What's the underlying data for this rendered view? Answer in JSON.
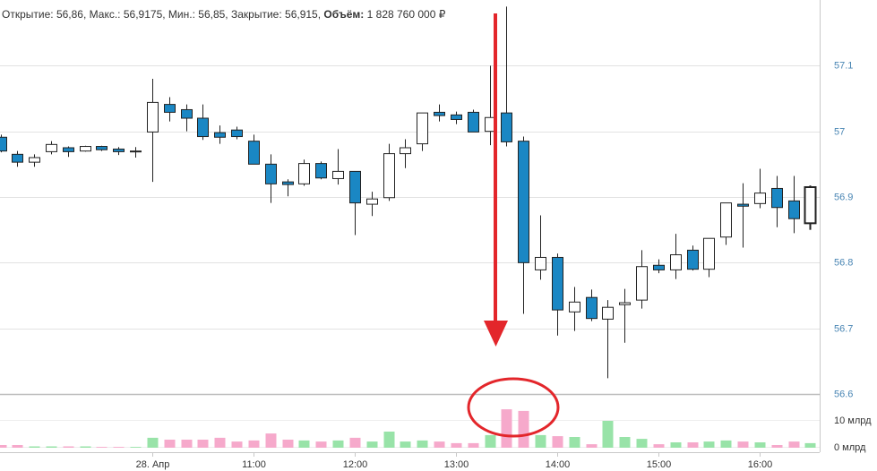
{
  "header": {
    "open_label": "Открытие:",
    "open": "56,86,",
    "high_label": "Макс.:",
    "high": "56,9175,",
    "low_label": "Мин.:",
    "low": "56,85,",
    "close_label": "Закрытие:",
    "close": "56,915,",
    "volume_label": "Объём:",
    "volume": "1 828 760 000 ₽"
  },
  "chart_data": {
    "type": "candlestick",
    "categories": [
      null,
      null,
      null,
      null,
      null,
      null,
      null,
      null,
      null,
      "28. Апр",
      null,
      null,
      null,
      null,
      null,
      "11:00",
      null,
      null,
      null,
      null,
      null,
      "12:00",
      null,
      null,
      null,
      null,
      null,
      "13:00",
      null,
      null,
      null,
      null,
      null,
      "14:00",
      null,
      null,
      null,
      null,
      null,
      "15:00",
      null,
      null,
      null,
      null,
      null,
      "16:00",
      null,
      null,
      null
    ],
    "open": [
      56.991,
      56.965,
      56.953,
      56.969,
      56.975,
      56.97,
      56.977,
      56.973,
      56.97,
      56.999,
      57.041,
      57.033,
      57.02,
      56.998,
      57.002,
      56.985,
      56.95,
      56.923,
      56.92,
      56.951,
      56.928,
      56.939,
      56.889,
      56.899,
      56.966,
      56.981,
      57.029,
      57.025,
      57.029,
      57.0,
      57.028,
      56.985,
      56.789,
      56.808,
      56.725,
      56.747,
      56.714,
      56.736,
      56.743,
      56.796,
      56.789,
      56.819,
      56.79,
      56.839,
      56.889,
      56.89,
      56.913,
      56.894,
      56.86
    ],
    "high": [
      56.995,
      56.97,
      56.965,
      56.985,
      56.977,
      56.978,
      56.978,
      56.976,
      56.976,
      57.08,
      57.052,
      57.041,
      57.041,
      57.009,
      57.007,
      56.995,
      56.965,
      56.927,
      56.957,
      56.954,
      56.973,
      56.939,
      56.908,
      56.981,
      56.988,
      57.028,
      57.041,
      57.03,
      57.033,
      57.1,
      57.19,
      56.992,
      56.872,
      56.814,
      56.763,
      56.759,
      56.743,
      56.76,
      56.819,
      56.805,
      56.844,
      56.826,
      56.837,
      56.891,
      56.921,
      56.943,
      56.932,
      56.932,
      56.9175
    ],
    "low": [
      56.968,
      56.946,
      56.946,
      56.965,
      56.961,
      56.969,
      56.97,
      56.964,
      56.96,
      56.923,
      57.015,
      57.0,
      56.987,
      56.981,
      56.988,
      56.95,
      56.891,
      56.901,
      56.917,
      56.927,
      56.919,
      56.842,
      56.871,
      56.894,
      56.944,
      56.97,
      57.015,
      57.011,
      56.999,
      56.979,
      56.977,
      56.722,
      56.774,
      56.689,
      56.696,
      56.711,
      56.624,
      56.678,
      56.73,
      56.784,
      56.775,
      56.788,
      56.778,
      56.827,
      56.823,
      56.883,
      56.854,
      56.845,
      56.85
    ],
    "close": [
      56.97,
      56.953,
      56.96,
      56.98,
      56.969,
      56.977,
      56.972,
      56.969,
      56.97,
      57.044,
      57.029,
      57.02,
      56.992,
      56.991,
      56.992,
      56.95,
      56.92,
      56.919,
      56.951,
      56.929,
      56.939,
      56.891,
      56.897,
      56.966,
      56.975,
      57.028,
      57.024,
      57.018,
      56.999,
      57.021,
      56.984,
      56.8,
      56.808,
      56.728,
      56.74,
      56.715,
      56.732,
      56.739,
      56.794,
      56.789,
      56.812,
      56.79,
      56.837,
      56.891,
      56.886,
      56.906,
      56.884,
      56.867,
      56.915
    ],
    "up_color": "#ffffff",
    "down_color": "#1a87c4",
    "outline_color": "#222222",
    "ylim": [
      56.6,
      57.2
    ],
    "yticks": [
      56.6,
      56.7,
      56.8,
      56.9,
      57,
      57.1
    ],
    "grid": true,
    "volume": {
      "values": [
        1,
        1,
        0.5,
        0.5,
        0.5,
        0.5,
        0.3,
        0.3,
        0.3,
        3.7,
        3,
        3,
        3,
        3.7,
        2.3,
        2.7,
        5.3,
        3,
        2.7,
        2.3,
        2.7,
        3.7,
        2.3,
        6,
        2.3,
        2.7,
        2.3,
        1.7,
        1.7,
        4.7,
        14.3,
        13.7,
        4.7,
        4.3,
        4,
        1.3,
        10,
        4,
        3.3,
        1.3,
        2,
        2,
        2.3,
        2.7,
        2.3,
        2,
        1,
        2.3,
        1.7
      ],
      "up_color": "#98e3a8",
      "down_color": "#f6a9cb",
      "ylim": [
        0,
        20
      ],
      "yticks": [
        {
          "value": 0,
          "label": "0 млрд"
        },
        {
          "value": 10,
          "label": "10 млрд"
        }
      ]
    }
  }
}
